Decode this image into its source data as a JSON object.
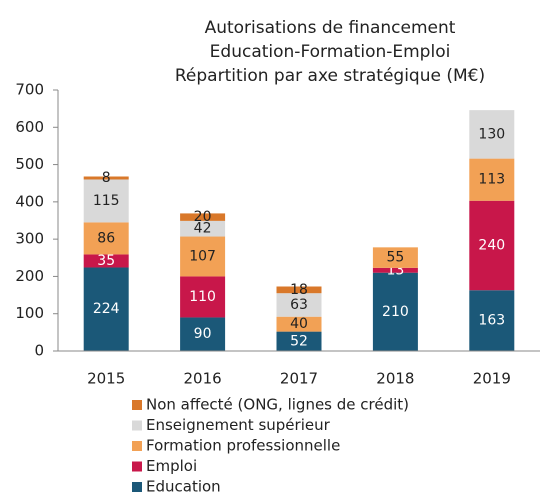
{
  "chart_data": {
    "type": "stacked_bar",
    "title": [
      "Autorisations de financement",
      "Education-Formation-Emploi",
      "Répartition par axe stratégique (M€)"
    ],
    "categories": [
      "2015",
      "2016",
      "2017",
      "2018",
      "2019"
    ],
    "series": [
      {
        "name": "Education",
        "color": "#1b5878",
        "values": [
          224,
          90,
          52,
          210,
          163
        ]
      },
      {
        "name": "Emploi",
        "color": "#c8174a",
        "values": [
          35,
          110,
          null,
          13,
          240
        ]
      },
      {
        "name": "Formation professionnelle",
        "color": "#f2a155",
        "values": [
          86,
          107,
          40,
          55,
          113
        ]
      },
      {
        "name": "Enseignement supérieur",
        "color": "#d9d9d9",
        "values": [
          115,
          42,
          63,
          null,
          130
        ]
      },
      {
        "name": "Non affecté (ONG, lignes de crédit)",
        "color": "#d9782a",
        "values": [
          8,
          20,
          18,
          null,
          null
        ]
      }
    ],
    "ylim": [
      0,
      700
    ],
    "yticks": [
      0,
      100,
      200,
      300,
      400,
      500,
      600,
      700
    ]
  }
}
